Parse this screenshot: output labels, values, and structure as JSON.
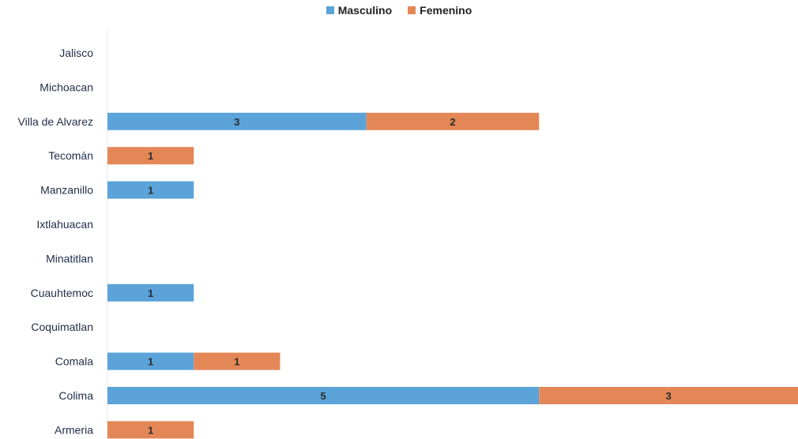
{
  "colors": {
    "masculino": "#5ba3d9",
    "femenino": "#e48757",
    "axis": "#e6e6e6",
    "label": "#1f2d4a"
  },
  "chart_data": {
    "type": "bar",
    "orientation": "horizontal",
    "stacked": true,
    "title": "",
    "xlabel": "",
    "ylabel": "",
    "legend_position": "top",
    "grid": false,
    "xlim": [
      0,
      8
    ],
    "categories": [
      "Jalisco",
      "Michoacan",
      "Villa de Alvarez",
      "Tecomán",
      "Manzanillo",
      "Ixtlahuacan",
      "Minatitlan",
      "Cuauhtemoc",
      "Coquimatlan",
      "Comala",
      "Colima",
      "Armeria"
    ],
    "series": [
      {
        "name": "Masculino",
        "color": "#5ba3d9",
        "values": [
          0,
          0,
          3,
          0,
          1,
          0,
          0,
          1,
          0,
          1,
          5,
          0
        ]
      },
      {
        "name": "Femenino",
        "color": "#e48757",
        "values": [
          0,
          0,
          2,
          1,
          0,
          0,
          0,
          0,
          0,
          1,
          3,
          1
        ]
      }
    ]
  }
}
